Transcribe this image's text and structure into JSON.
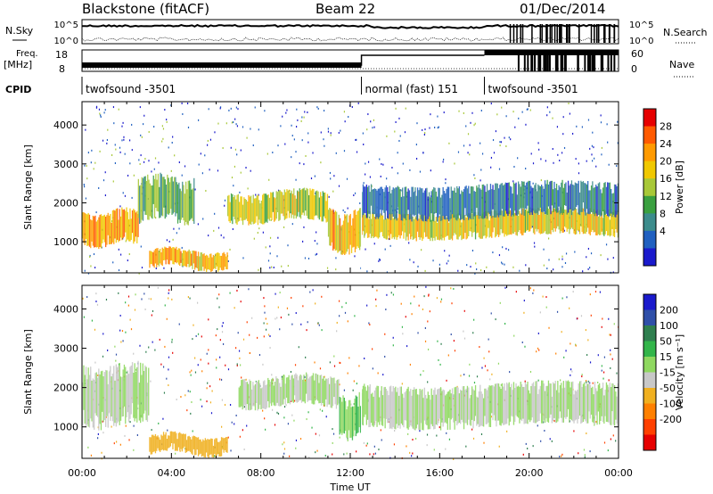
{
  "header": {
    "station": "Blackstone (fitACF)",
    "beam": "Beam 22",
    "date": "01/Dec/2014"
  },
  "panel_labels": {
    "nsky": "N.Sky",
    "nsearch": "N.Search",
    "freq": "Freq.",
    "freq_unit": "[MHz]",
    "nave": "Nave",
    "cpid": "CPID"
  },
  "small_axes": {
    "n_left_ticks": [
      "10^5",
      "10^0"
    ],
    "n_right_ticks": [
      "10^5",
      "10^0"
    ],
    "freq_ticks": [
      "18",
      "8"
    ],
    "nave_ticks": [
      "60",
      "0"
    ]
  },
  "cpid_segments": [
    {
      "label": "twofsound -3501",
      "start_hour": 0,
      "end_hour": 12.5
    },
    {
      "label": "normal (fast) 151",
      "start_hour": 12.5,
      "end_hour": 18
    },
    {
      "label": "twofsound -3501",
      "start_hour": 18,
      "end_hour": 24
    }
  ],
  "x_axis": {
    "label": "Time UT",
    "ticks": [
      "00:00",
      "04:00",
      "08:00",
      "12:00",
      "16:00",
      "20:00",
      "00:00"
    ],
    "range_hours": [
      0,
      24
    ]
  },
  "power_colorbar": {
    "label": "Power [dB]",
    "ticks": [
      "28",
      "24",
      "20",
      "16",
      "12",
      "8",
      "4"
    ],
    "colors": [
      "#e60000",
      "#ff5a00",
      "#ff9a00",
      "#f0c800",
      "#a8c838",
      "#3aa040",
      "#3c8c8c",
      "#2060c0",
      "#1a1acc"
    ]
  },
  "velocity_colorbar": {
    "label": "Velocity [m s⁻¹]",
    "ticks": [
      "200",
      "100",
      "50",
      "15",
      "-15",
      "-50",
      "-100",
      "-200"
    ],
    "colors": [
      "#1a1acc",
      "#2f4fa8",
      "#2f7f4f",
      "#33b54a",
      "#8fd860",
      "#c8c8c8",
      "#f0b020",
      "#ff8000",
      "#ff4000",
      "#e60000"
    ]
  },
  "chart_data": [
    {
      "type": "heatmap",
      "title": "Power",
      "ylabel": "Slant Range [km]",
      "xlabel": "Time UT",
      "ylim": [
        200,
        4600
      ],
      "y_ticks": [
        1000,
        2000,
        3000,
        4000
      ],
      "xlim": [
        0,
        24
      ],
      "colorbar_label": "Power [dB]",
      "bands": [
        {
          "t0": 0,
          "t1": 2.5,
          "r0": 900,
          "r1": 1800,
          "level": 22
        },
        {
          "t0": 2.5,
          "t1": 5,
          "r0": 1500,
          "r1": 2700,
          "level": 12
        },
        {
          "t0": 6.5,
          "t1": 11,
          "r0": 1500,
          "r1": 2300,
          "level": 16
        },
        {
          "t0": 11,
          "t1": 12.5,
          "r0": 700,
          "r1": 1800,
          "level": 20
        },
        {
          "t0": 12.5,
          "t1": 24,
          "r0": 1100,
          "r1": 1800,
          "level": 18
        },
        {
          "t0": 12.5,
          "t1": 24,
          "r0": 1600,
          "r1": 2500,
          "level": 6
        },
        {
          "t0": 3,
          "t1": 6.5,
          "r0": 300,
          "r1": 800,
          "level": 20
        }
      ]
    },
    {
      "type": "heatmap",
      "title": "Velocity",
      "ylabel": "Slant Range [km]",
      "xlabel": "Time UT",
      "ylim": [
        200,
        4600
      ],
      "y_ticks": [
        1000,
        2000,
        3000,
        4000
      ],
      "xlim": [
        0,
        24
      ],
      "colorbar_label": "Velocity [m s⁻¹]",
      "bands": [
        {
          "t0": 0,
          "t1": 3,
          "r0": 1000,
          "r1": 2600,
          "value": 0
        },
        {
          "t0": 7,
          "t1": 11.5,
          "r0": 1500,
          "r1": 2300,
          "value": 0
        },
        {
          "t0": 11.5,
          "t1": 12.5,
          "r0": 700,
          "r1": 1800,
          "value": 40
        },
        {
          "t0": 12.5,
          "t1": 24,
          "r0": 1000,
          "r1": 2100,
          "value": 0
        },
        {
          "t0": 3,
          "t1": 6.5,
          "r0": 300,
          "r1": 800,
          "value": -70
        }
      ]
    }
  ]
}
